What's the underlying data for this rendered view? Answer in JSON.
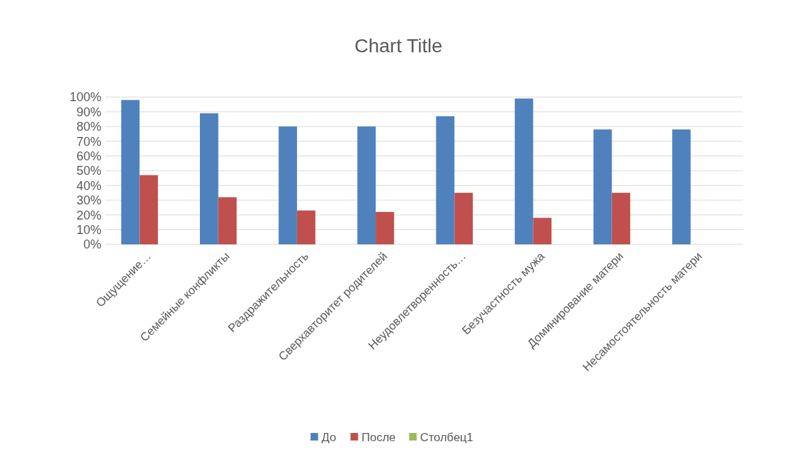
{
  "chart_data": {
    "type": "bar",
    "title": "Chart Title",
    "categories": [
      "Ощущение…",
      "Семейные конфликты",
      "Раздражительность",
      "Сверхавторитет родителей",
      "Неудовлетворенность…",
      "Безучастность мужа",
      "Доминирование матери",
      "Несамостоятельность матери"
    ],
    "series": [
      {
        "name": "До",
        "color": "#4f81bd",
        "values": [
          98,
          89,
          80,
          80,
          87,
          99,
          78,
          78
        ]
      },
      {
        "name": "После",
        "color": "#c0504d",
        "values": [
          47,
          32,
          23,
          22,
          35,
          18,
          35,
          null
        ]
      },
      {
        "name": "Столбец1",
        "color": "#9bbb59",
        "values": [
          null,
          null,
          null,
          null,
          null,
          null,
          null,
          null
        ]
      }
    ],
    "ylim": [
      0,
      100
    ],
    "yticks": [
      {
        "value": 0,
        "label": "0%"
      },
      {
        "value": 10,
        "label": "10%"
      },
      {
        "value": 20,
        "label": "20%"
      },
      {
        "value": 30,
        "label": "30%"
      },
      {
        "value": 40,
        "label": "40%"
      },
      {
        "value": 50,
        "label": "50%"
      },
      {
        "value": 60,
        "label": "60%"
      },
      {
        "value": 70,
        "label": "70%"
      },
      {
        "value": 80,
        "label": "80%"
      },
      {
        "value": 90,
        "label": "90%"
      },
      {
        "value": 100,
        "label": "100%"
      }
    ],
    "grid": "y",
    "legend": "bottom"
  }
}
